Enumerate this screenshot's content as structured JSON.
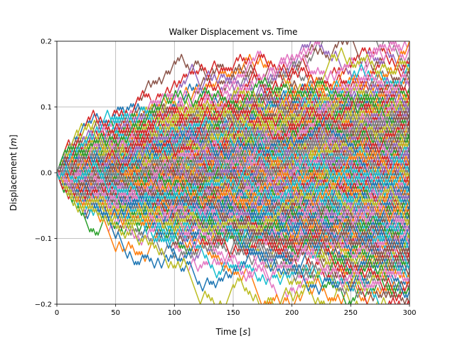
{
  "chart_data": {
    "type": "line",
    "title": "Walker Displacement vs. Time",
    "xlabel": "Time",
    "xlabel_unit": "s",
    "ylabel": "Displacement",
    "ylabel_unit": "m",
    "xlim": [
      0,
      300
    ],
    "ylim": [
      -0.2,
      0.2
    ],
    "x_ticks": [
      0,
      50,
      100,
      150,
      200,
      250,
      300
    ],
    "x_tick_labels": [
      "0",
      "50",
      "100",
      "150",
      "200",
      "250",
      "300"
    ],
    "y_ticks": [
      -0.2,
      -0.1,
      0.0,
      0.1,
      0.2
    ],
    "y_tick_labels": [
      "−0.2",
      "−0.1",
      "0.0",
      "0.1",
      "0.2"
    ],
    "grid": true,
    "legend": "none",
    "series_count": 400,
    "steps": 300,
    "step_size": 0.005,
    "start_value": 0.0,
    "palette": [
      "#1f77b4",
      "#ff7f0e",
      "#2ca02c",
      "#d62728",
      "#9467bd",
      "#8c564b",
      "#e377c2",
      "#7f7f7f",
      "#bcbd22",
      "#17becf"
    ]
  }
}
